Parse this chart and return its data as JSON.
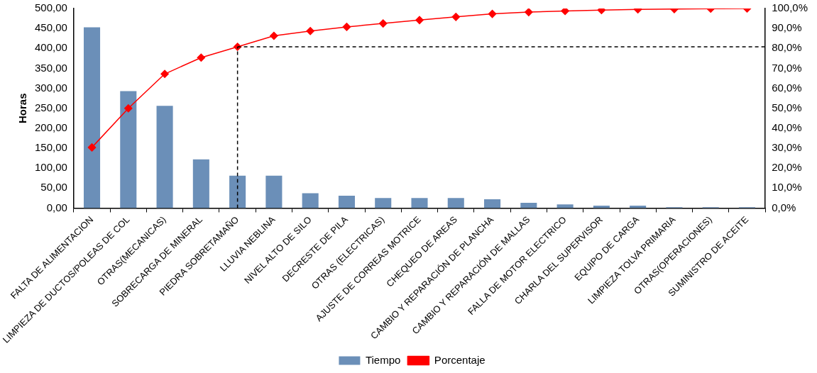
{
  "chart_data": {
    "type": "bar",
    "ylabel": "Horas",
    "categories": [
      "FALTA DE ALIMENTACION",
      "LIMPIEZA DE DUCTOS/POLEAS DE COL",
      "OTRAS(MECANICAS)",
      "SOBRECARGA DE MINERAL",
      "PIEDRA SOBRETAMAÑO",
      "LLUVIA NEBLINA",
      "NIVEL ALTO DE SILO",
      "DECRESTE DE PILA",
      "OTRAS (ELECTRICAS)",
      "AJUSTE DE CORREAS MOTRICE",
      "CHEQUEO DE AREAS",
      "CAMBIO Y REPARACIÓN DE PLANCHA",
      "CAMBIO Y REPARACIÓN DE MALLAS",
      "FALLA DE MOTOR ELECTRICO",
      "CHARLA DEL SUPERVISOR",
      "EQUIPO DE CARGA",
      "LIMPIEZA TOLVA PRIMARIA",
      "OTRAS(OPERACIONES)",
      "SUMINISTRO DE ACEITE"
    ],
    "series": [
      {
        "name": "Tiempo",
        "color": "#6b8fb8",
        "values": [
          453,
          293,
          256,
          122,
          81,
          81,
          37,
          31,
          25,
          25,
          25,
          22,
          13,
          9,
          6,
          6,
          2,
          2,
          2
        ]
      },
      {
        "name": "Porcentaje",
        "type": "line",
        "axis": "y2",
        "color": "#ff0000",
        "values": [
          30.4,
          50.0,
          67.2,
          75.4,
          80.8,
          86.3,
          88.7,
          90.8,
          92.5,
          94.2,
          95.8,
          97.3,
          98.2,
          98.8,
          99.2,
          99.6,
          99.7,
          99.9,
          100.0
        ]
      }
    ],
    "ylim": [
      0,
      500
    ],
    "yticks": [
      {
        "value": 0,
        "label": "0,00"
      },
      {
        "value": 50,
        "label": "50,00"
      },
      {
        "value": 100,
        "label": "100,00"
      },
      {
        "value": 150,
        "label": "150,00"
      },
      {
        "value": 200,
        "label": "200,00"
      },
      {
        "value": 250,
        "label": "250,00"
      },
      {
        "value": 300,
        "label": "300,00"
      },
      {
        "value": 350,
        "label": "350,00"
      },
      {
        "value": 400,
        "label": "400,00"
      },
      {
        "value": 450,
        "label": "450,00"
      },
      {
        "value": 500,
        "label": "500,00"
      }
    ],
    "y2lim": [
      0,
      100
    ],
    "y2ticks": [
      {
        "value": 0,
        "label": "0,0%"
      },
      {
        "value": 10,
        "label": "10,0%"
      },
      {
        "value": 20,
        "label": "20,0%"
      },
      {
        "value": 30,
        "label": "30,0%"
      },
      {
        "value": 40,
        "label": "40,0%"
      },
      {
        "value": 50,
        "label": "50,0%"
      },
      {
        "value": 60,
        "label": "60,0%"
      },
      {
        "value": 70,
        "label": "70,0%"
      },
      {
        "value": 80,
        "label": "80,0%"
      },
      {
        "value": 90,
        "label": "90,0%"
      },
      {
        "value": 100,
        "label": "100,0%"
      }
    ],
    "ref_lines": [
      {
        "axis": "y2",
        "value": 80.8,
        "color": "#000000",
        "line_style": "dashed"
      },
      {
        "axis": "x",
        "value": "PIEDRA SOBRETAMAÑO",
        "color": "#000000",
        "line_style": "dashed"
      }
    ],
    "marker": "diamond",
    "grid": false,
    "legend": "bottom"
  }
}
